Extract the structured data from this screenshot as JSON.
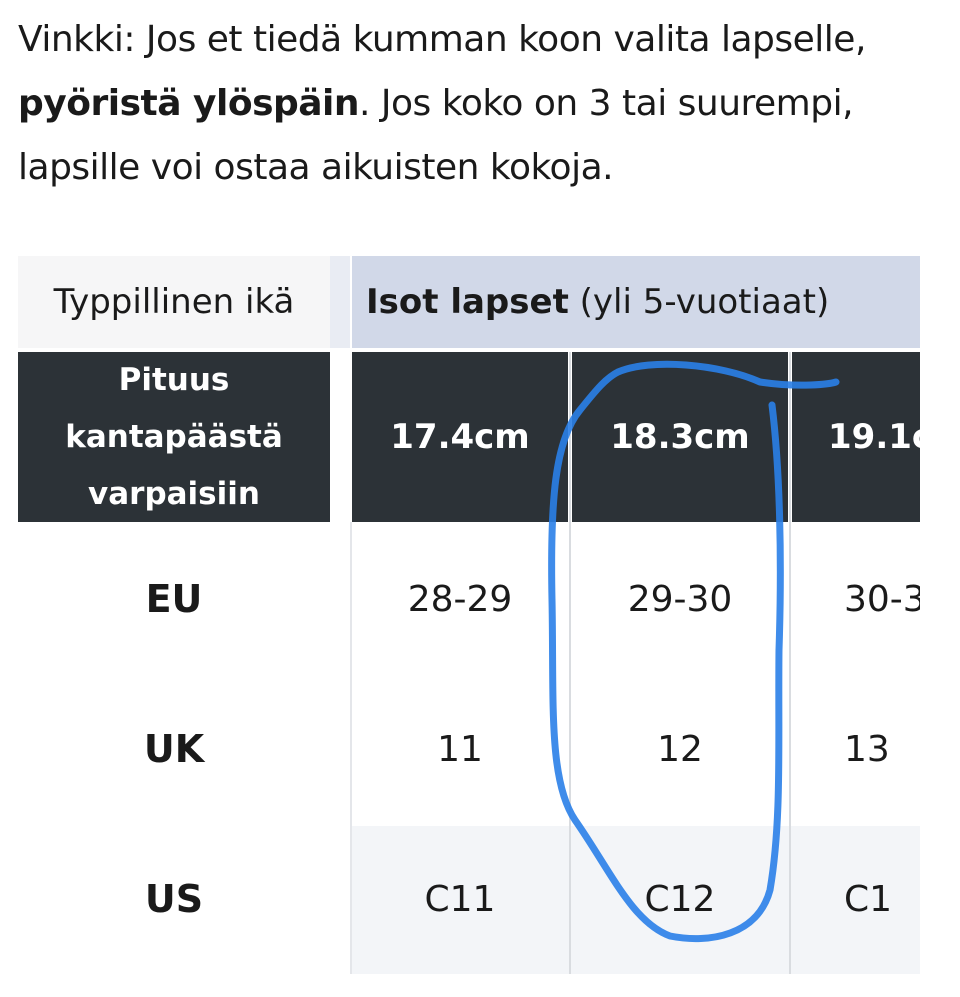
{
  "tip": {
    "prefix": "Vinkki: Jos et tiedä kumman koon valita lapselle,",
    "bold": "pyöristä ylöspäin",
    "suffix": ". Jos koko on 3 tai suurempi, lapsille voi ostaa aikuisten kokoja."
  },
  "table": {
    "age_label": "Typpillinen ikä",
    "age_group_bold": "Isot lapset",
    "age_group_rest": " (yli 5-vuotiaat)",
    "length_label": "Pituus kantapäästä varpaisiin",
    "lengths": [
      "17.4cm",
      "18.3cm",
      "19.1c"
    ],
    "rows": [
      {
        "label": "EU",
        "values": [
          "28-29",
          "29-30",
          "30-3"
        ]
      },
      {
        "label": "UK",
        "values": [
          "11",
          "12",
          "13"
        ]
      },
      {
        "label": "US",
        "values": [
          "C11",
          "C12",
          "C1"
        ]
      }
    ]
  },
  "annotation": {
    "color": "#2a7fe8",
    "shape": "hand-drawn-circle"
  }
}
